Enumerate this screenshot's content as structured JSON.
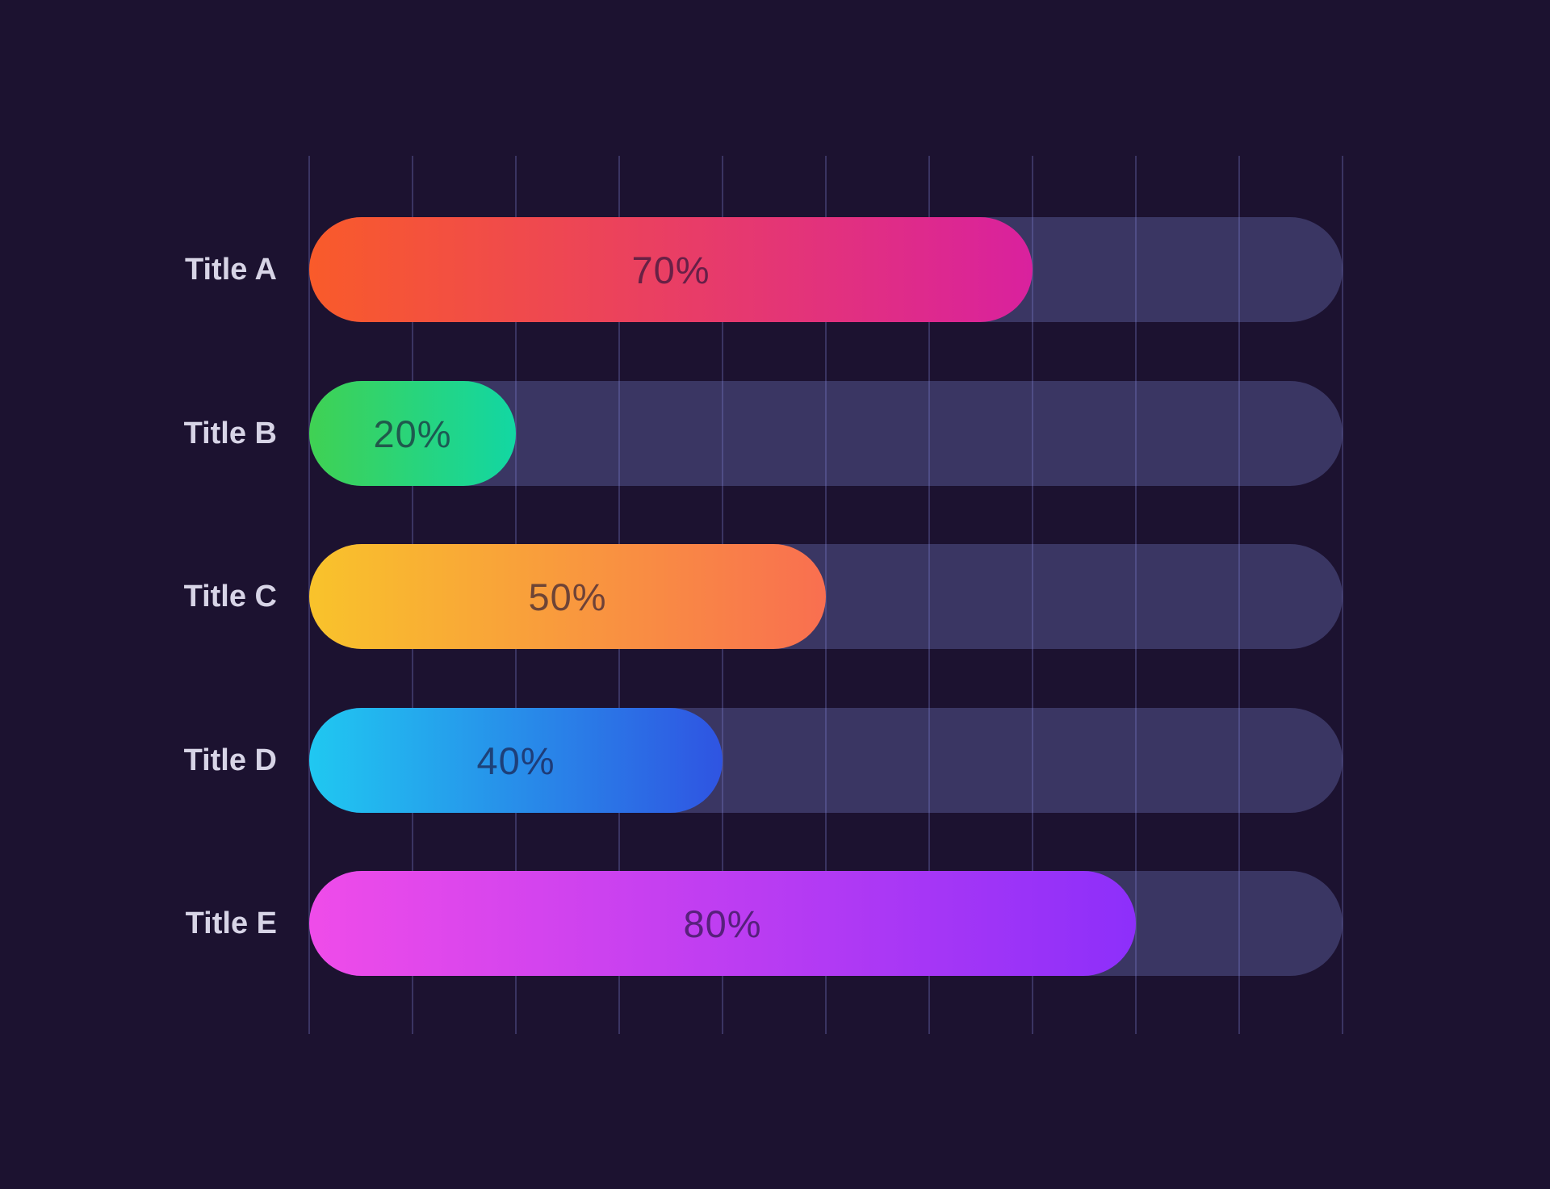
{
  "chart_data": {
    "type": "bar",
    "orientation": "horizontal",
    "title": "",
    "categories": [
      "Title A",
      "Title B",
      "Title C",
      "Title D",
      "Title E"
    ],
    "values": [
      70,
      20,
      50,
      40,
      80
    ],
    "value_labels": [
      "70%",
      "20%",
      "50%",
      "40%",
      "80%"
    ],
    "xlabel": "",
    "ylabel": "",
    "xlim": [
      0,
      100
    ],
    "gridline_interval": 10,
    "gridline_count": 11,
    "grid": "vertical-only",
    "legend": "none",
    "value_label_position": "centered-in-bar"
  },
  "bars": [
    {
      "label": "Title A",
      "value": 70,
      "value_label": "70%",
      "gradient_start": "#f95b2a",
      "gradient_end": "#d9219e"
    },
    {
      "label": "Title B",
      "value": 20,
      "value_label": "20%",
      "gradient_start": "#40d153",
      "gradient_end": "#12d7a3"
    },
    {
      "label": "Title C",
      "value": 50,
      "value_label": "50%",
      "gradient_start": "#f9c32b",
      "gradient_end": "#f96f50"
    },
    {
      "label": "Title D",
      "value": 40,
      "value_label": "40%",
      "gradient_start": "#20c8f1",
      "gradient_end": "#2f54e2"
    },
    {
      "label": "Title E",
      "value": 80,
      "value_label": "80%",
      "gradient_start": "#ef4ce9",
      "gradient_end": "#8d2ffa"
    }
  ],
  "colors": {
    "background": "#1c1230",
    "track": "#3a3663",
    "gridline": "rgba(130,132,214,0.30)",
    "category_label": "#d7d4e6",
    "value_label": "rgba(25,15,52,0.62)"
  }
}
